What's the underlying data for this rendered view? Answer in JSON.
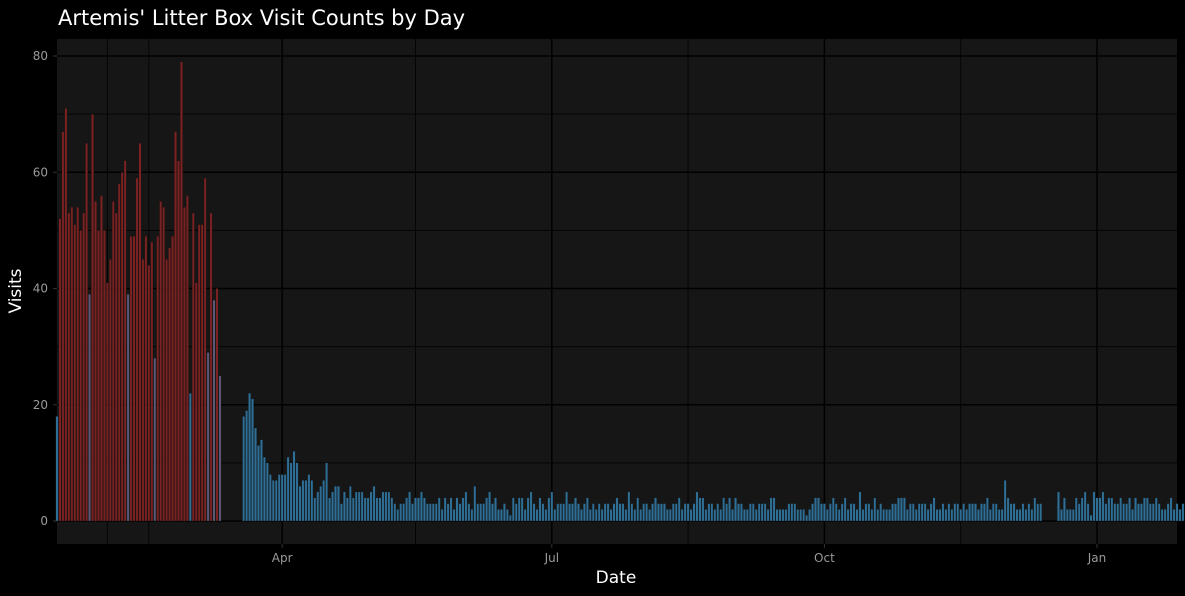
{
  "chart_data": {
    "type": "bar",
    "title": "Artemis' Litter Box Visit Counts by Day",
    "xlabel": "Date",
    "ylabel": "Visits",
    "ylim": [
      0,
      83
    ],
    "yticks": [
      0,
      20,
      40,
      60,
      80
    ],
    "x_date_range": [
      "2023-01-15",
      "2024-01-28"
    ],
    "x_ticks": [
      {
        "date": "2023-04-01",
        "label": "Apr"
      },
      {
        "date": "2023-07-01",
        "label": "Jul"
      },
      {
        "date": "2023-10-01",
        "label": "Oct"
      },
      {
        "date": "2024-01-01",
        "label": "Jan"
      }
    ],
    "x_minor_ticks": [
      "2023-02-15",
      "2023-05-16",
      "2023-08-16",
      "2023-11-16"
    ],
    "grid": true,
    "colors": {
      "background": "#000000",
      "panel": "#161616",
      "grid_major": "#000000",
      "grid_minor": "#050505",
      "fill_high": "#7a2222",
      "fill_low": "#2f6f96",
      "fill_mid": "#5a5a78"
    },
    "first_date": "2023-01-15",
    "values": [
      18,
      52,
      67,
      71,
      53,
      54,
      51,
      54,
      50,
      53,
      65,
      39,
      70,
      55,
      50,
      56,
      50,
      41,
      45,
      55,
      53,
      58,
      60,
      62,
      39,
      49,
      49,
      59,
      65,
      45,
      49,
      44,
      48,
      28,
      49,
      55,
      54,
      45,
      47,
      49,
      67,
      62,
      79,
      54,
      56,
      22,
      53,
      41,
      51,
      51,
      59,
      29,
      53,
      38,
      40,
      25,
      null,
      null,
      null,
      null,
      null,
      null,
      null,
      18,
      19,
      22,
      21,
      16,
      13,
      14,
      11,
      10,
      8,
      7,
      7,
      8,
      8,
      8,
      11,
      10,
      12,
      10,
      6,
      7,
      7,
      8,
      7,
      4,
      5,
      6,
      7,
      10,
      4,
      5,
      6,
      6,
      3,
      5,
      4,
      6,
      4,
      5,
      5,
      5,
      4,
      4,
      5,
      6,
      4,
      4,
      5,
      5,
      5,
      4,
      3,
      2,
      3,
      3,
      4,
      5,
      3,
      4,
      4,
      5,
      4,
      3,
      3,
      3,
      3,
      4,
      2,
      4,
      3,
      4,
      2,
      4,
      3,
      4,
      5,
      3,
      2,
      6,
      3,
      3,
      3,
      4,
      5,
      3,
      4,
      2,
      2,
      3,
      2,
      1,
      4,
      3,
      4,
      4,
      2,
      4,
      5,
      3,
      2,
      4,
      3,
      2,
      4,
      5,
      2,
      3,
      3,
      3,
      5,
      3,
      3,
      4,
      3,
      2,
      3,
      4,
      2,
      3,
      2,
      3,
      2,
      3,
      3,
      2,
      3,
      4,
      3,
      3,
      2,
      5,
      3,
      2,
      4,
      2,
      3,
      3,
      2,
      3,
      4,
      3,
      3,
      3,
      2,
      2,
      3,
      3,
      4,
      2,
      3,
      3,
      2,
      3,
      5,
      4,
      4,
      2,
      3,
      3,
      2,
      3,
      2,
      4,
      3,
      4,
      2,
      4,
      3,
      3,
      2,
      2,
      3,
      3,
      2,
      3,
      3,
      3,
      2,
      4,
      4,
      2,
      2,
      2,
      2,
      3,
      3,
      3,
      2,
      2,
      2,
      1,
      2,
      3,
      4,
      4,
      3,
      3,
      2,
      3,
      4,
      3,
      2,
      3,
      4,
      2,
      3,
      3,
      2,
      5,
      2,
      3,
      3,
      2,
      4,
      2,
      3,
      2,
      2,
      2,
      3,
      3,
      4,
      4,
      4,
      2,
      3,
      3,
      2,
      3,
      3,
      3,
      2,
      3,
      4,
      2,
      2,
      3,
      2,
      3,
      2,
      3,
      3,
      2,
      3,
      2,
      3,
      3,
      3,
      2,
      3,
      3,
      4,
      2,
      3,
      3,
      2,
      2,
      7,
      4,
      3,
      3,
      2,
      2,
      3,
      2,
      3,
      2,
      4,
      3,
      3,
      null,
      null,
      null,
      null,
      null,
      5,
      2,
      4,
      2,
      2,
      2,
      4,
      3,
      4,
      5,
      3,
      1,
      5,
      4,
      4,
      5,
      3,
      4,
      4,
      3,
      3,
      4,
      3,
      3,
      4,
      2,
      4,
      3,
      3,
      4,
      4,
      3,
      3,
      4,
      3,
      2,
      2,
      3,
      4,
      2,
      3,
      2,
      3
    ]
  }
}
